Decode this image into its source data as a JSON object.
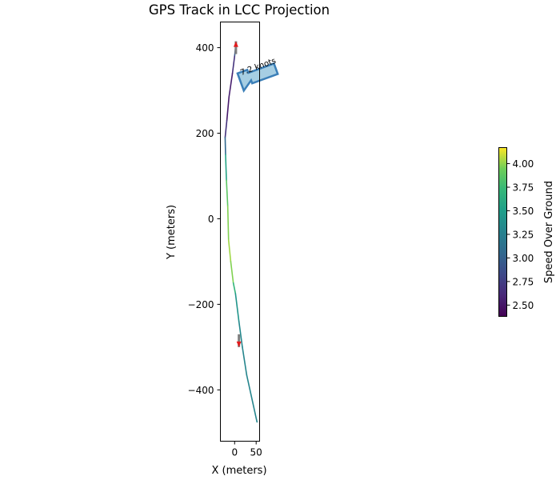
{
  "chart_data": {
    "type": "line",
    "title": "GPS Track in LCC Projection",
    "xlabel": "X (meters)",
    "ylabel": "Y (meters)",
    "xlim": [
      -33,
      58
    ],
    "ylim": [
      -520,
      460
    ],
    "x_ticks": [
      0,
      50
    ],
    "x_tick_labels": [
      "0",
      "50"
    ],
    "y_ticks": [
      -400,
      -200,
      0,
      200,
      400
    ],
    "y_tick_labels": [
      "−400",
      "−200",
      "0",
      "200",
      "400"
    ],
    "grid": false,
    "series": [
      {
        "points": [
          {
            "x": 3,
            "y": 410,
            "speed": 3.15
          },
          {
            "x": 0,
            "y": 380,
            "speed": 2.75
          },
          {
            "x": -5,
            "y": 340,
            "speed": 2.6
          },
          {
            "x": -13,
            "y": 285,
            "speed": 2.5
          },
          {
            "x": -18,
            "y": 230,
            "speed": 2.55
          },
          {
            "x": -22,
            "y": 190,
            "speed": 2.8
          },
          {
            "x": -21,
            "y": 150,
            "speed": 3.3
          },
          {
            "x": -19,
            "y": 90,
            "speed": 3.8
          },
          {
            "x": -16,
            "y": 30,
            "speed": 3.95
          },
          {
            "x": -14,
            "y": -50,
            "speed": 4.0
          },
          {
            "x": -9,
            "y": -100,
            "speed": 4.05
          },
          {
            "x": -3,
            "y": -150,
            "speed": 3.9
          },
          {
            "x": 2,
            "y": -175,
            "speed": 3.5
          },
          {
            "x": 10,
            "y": -240,
            "speed": 3.35
          },
          {
            "x": 18,
            "y": -300,
            "speed": 3.3
          },
          {
            "x": 28,
            "y": -365,
            "speed": 3.3
          },
          {
            "x": 52,
            "y": -475,
            "speed": 3.3
          }
        ]
      }
    ],
    "direction_arrows": [
      {
        "x": 3,
        "y": 400,
        "heading": "north"
      },
      {
        "x": 10,
        "y": -285,
        "heading": "south"
      }
    ],
    "annotation": {
      "text": "7.2 knots",
      "arrow_direction": "left"
    },
    "colorbar": {
      "label": "Speed Over Ground",
      "min": 2.38,
      "max": 4.17,
      "colormap": "viridis",
      "ticks": [
        2.5,
        2.75,
        3.0,
        3.25,
        3.5,
        3.75,
        4.0
      ],
      "tick_labels": [
        "2.50",
        "2.75",
        "3.00",
        "3.25",
        "3.50",
        "3.75",
        "4.00"
      ]
    },
    "colors": {
      "direction_arrow": "#e41a1c",
      "annotation_fill": "#a6cee3",
      "annotation_edge": "#3b7fb8"
    }
  }
}
